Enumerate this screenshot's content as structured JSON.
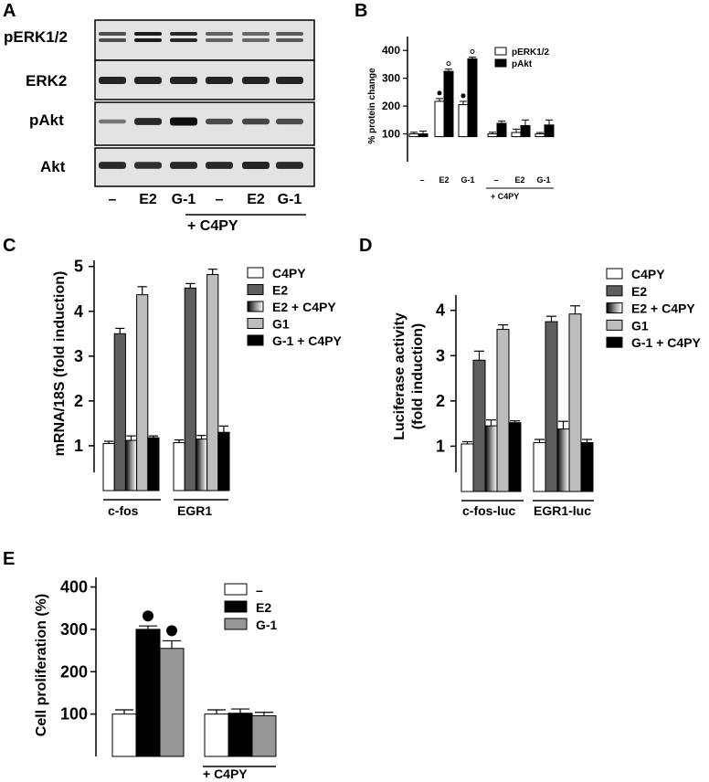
{
  "colors": {
    "c4py": "#ffffff",
    "e2": "#5e5e5e",
    "e2c4py": "gradient-black-white",
    "g1": "#bdbdbd",
    "g1c4py": "#000000",
    "e_e2": "#000000",
    "e_g1": "#969696"
  },
  "panelA": {
    "label": "A",
    "blots": [
      "pERK1/2",
      "ERK2",
      "pAkt",
      "Akt"
    ],
    "lanes": [
      "–",
      "E2",
      "G-1",
      "–",
      "E2",
      "G-1"
    ],
    "bracket": "+ C4PY"
  },
  "chart_data": [
    {
      "panel": "B",
      "type": "bar",
      "categories": [
        "–",
        "E2",
        "G-1",
        "–",
        "E2",
        "G-1"
      ],
      "group_label": "+ C4PY",
      "series": [
        {
          "name": "pERK1/2",
          "values": [
            100,
            217,
            205,
            100,
            105,
            100
          ],
          "errors": [
            6,
            10,
            12,
            6,
            12,
            5
          ]
        },
        {
          "name": "pAkt",
          "values": [
            100,
            325,
            370,
            138,
            130,
            132
          ],
          "errors": [
            10,
            8,
            6,
            8,
            20,
            18
          ]
        }
      ],
      "significance_marker": "•",
      "ylabel": "% protein change",
      "yticks": [
        "100",
        "200",
        "300",
        "400"
      ],
      "ylim": [
        0,
        450
      ]
    },
    {
      "panel": "C",
      "type": "bar",
      "categories": [
        "c-fos",
        "EGR1"
      ],
      "series": [
        {
          "name": "C4PY",
          "values": [
            1.05,
            1.07
          ],
          "errors": [
            0.05,
            0.06
          ]
        },
        {
          "name": "E2",
          "values": [
            3.5,
            4.52
          ],
          "errors": [
            0.12,
            0.1
          ]
        },
        {
          "name": "E2 + C4PY",
          "values": [
            1.12,
            1.15
          ],
          "errors": [
            0.1,
            0.08
          ]
        },
        {
          "name": "G1",
          "values": [
            4.37,
            4.82
          ],
          "errors": [
            0.18,
            0.12
          ]
        },
        {
          "name": "G-1 + C4PY",
          "values": [
            1.18,
            1.3
          ],
          "errors": [
            0.04,
            0.14
          ]
        }
      ],
      "ylabel": "mRNA/18S (fold induction)",
      "yticks": [
        "1",
        "2",
        "3",
        "4",
        "5"
      ],
      "ylim": [
        0,
        5.3
      ]
    },
    {
      "panel": "D",
      "type": "bar",
      "categories": [
        "c-fos-luc",
        "EGR1-luc"
      ],
      "series": [
        {
          "name": "C4PY",
          "values": [
            1.05,
            1.08
          ],
          "errors": [
            0.05,
            0.07
          ]
        },
        {
          "name": "E2",
          "values": [
            2.9,
            3.75
          ],
          "errors": [
            0.2,
            0.12
          ]
        },
        {
          "name": "E2 + C4PY",
          "values": [
            1.45,
            1.38
          ],
          "errors": [
            0.13,
            0.17
          ]
        },
        {
          "name": "G1",
          "values": [
            3.58,
            3.92
          ],
          "errors": [
            0.1,
            0.18
          ]
        },
        {
          "name": "G-1 + C4PY",
          "values": [
            1.52,
            1.08
          ],
          "errors": [
            0.04,
            0.07
          ]
        }
      ],
      "ylabel_lines": [
        "Luciferase activity",
        "(fold induction)"
      ],
      "yticks": [
        "1",
        "2",
        "3",
        "4"
      ],
      "ylim": [
        0,
        4.6
      ]
    },
    {
      "panel": "E",
      "type": "bar",
      "groups": [
        "",
        "+ C4PY"
      ],
      "series": [
        {
          "name": "–",
          "values": [
            100,
            100
          ],
          "errors": [
            10,
            10
          ]
        },
        {
          "name": "E2",
          "values": [
            300,
            102
          ],
          "errors": [
            8,
            10
          ]
        },
        {
          "name": "G-1",
          "values": [
            255,
            96
          ],
          "errors": [
            18,
            8
          ]
        }
      ],
      "significance_marker": "●",
      "ylabel": "Cell proliferation (%)",
      "yticks": [
        "100",
        "200",
        "300",
        "400"
      ],
      "ylim": [
        0,
        440
      ]
    }
  ]
}
